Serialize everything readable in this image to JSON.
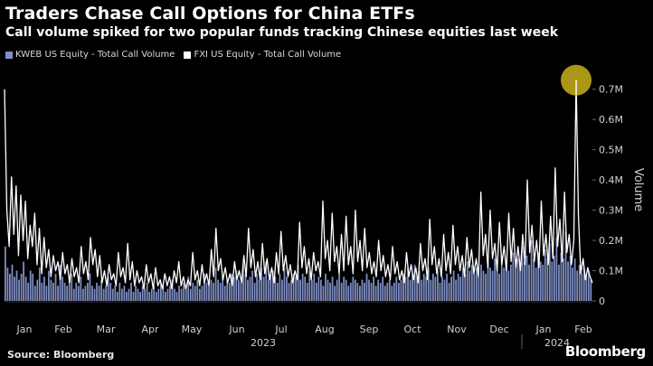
{
  "header": {
    "title": "Traders Chase Call Options for China ETFs",
    "subtitle": "Call volume spiked for two popular funds tracking Chinese equities last week"
  },
  "footer": {
    "source": "Source: Bloomberg",
    "brand": "Bloomberg"
  },
  "colors": {
    "kweb": "#7f8fc4",
    "fxi": "#ffffff",
    "highlight": "#c9b21a"
  },
  "chart_data": {
    "type": "bar",
    "title": "Traders Chase Call Options for China ETFs",
    "ylabel": "Volume",
    "ylim": [
      0,
      0.75
    ],
    "yticks": [
      {
        "v": 0,
        "label": "0"
      },
      {
        "v": 0.1,
        "label": "0.1M"
      },
      {
        "v": 0.2,
        "label": "0.2M"
      },
      {
        "v": 0.3,
        "label": "0.3M"
      },
      {
        "v": 0.4,
        "label": "0.4M"
      },
      {
        "v": 0.5,
        "label": "0.5M"
      },
      {
        "v": 0.6,
        "label": "0.6M"
      },
      {
        "v": 0.7,
        "label": "0.7M"
      }
    ],
    "xticks": [
      "Jan",
      "Feb",
      "Mar",
      "Apr",
      "May",
      "Jun",
      "Jul",
      "Aug",
      "Sep",
      "Oct",
      "Nov",
      "Dec",
      "Jan",
      "Feb"
    ],
    "year_labels": [
      "2023",
      "2024"
    ],
    "series": [
      {
        "name": "KWEB US Equity - Total Call Volume",
        "type": "bar",
        "values": [
          0.18,
          0.11,
          0.09,
          0.12,
          0.08,
          0.1,
          0.07,
          0.09,
          0.13,
          0.08,
          0.06,
          0.1,
          0.09,
          0.05,
          0.07,
          0.11,
          0.06,
          0.08,
          0.05,
          0.1,
          0.07,
          0.06,
          0.09,
          0.05,
          0.12,
          0.08,
          0.06,
          0.05,
          0.07,
          0.09,
          0.04,
          0.06,
          0.05,
          0.08,
          0.04,
          0.05,
          0.06,
          0.09,
          0.05,
          0.04,
          0.06,
          0.05,
          0.07,
          0.04,
          0.05,
          0.08,
          0.06,
          0.04,
          0.05,
          0.03,
          0.06,
          0.04,
          0.05,
          0.03,
          0.04,
          0.06,
          0.03,
          0.05,
          0.04,
          0.03,
          0.05,
          0.04,
          0.06,
          0.03,
          0.04,
          0.05,
          0.03,
          0.04,
          0.06,
          0.05,
          0.03,
          0.04,
          0.05,
          0.07,
          0.04,
          0.03,
          0.05,
          0.04,
          0.06,
          0.05,
          0.08,
          0.04,
          0.06,
          0.05,
          0.07,
          0.04,
          0.05,
          0.09,
          0.06,
          0.05,
          0.07,
          0.06,
          0.11,
          0.07,
          0.06,
          0.08,
          0.05,
          0.07,
          0.06,
          0.09,
          0.08,
          0.1,
          0.07,
          0.06,
          0.12,
          0.09,
          0.07,
          0.08,
          0.1,
          0.06,
          0.09,
          0.07,
          0.11,
          0.08,
          0.13,
          0.07,
          0.09,
          0.1,
          0.08,
          0.06,
          0.09,
          0.07,
          0.11,
          0.08,
          0.06,
          0.07,
          0.09,
          0.08,
          0.12,
          0.07,
          0.09,
          0.08,
          0.06,
          0.1,
          0.07,
          0.09,
          0.06,
          0.08,
          0.07,
          0.05,
          0.09,
          0.07,
          0.06,
          0.08,
          0.05,
          0.07,
          0.09,
          0.06,
          0.08,
          0.07,
          0.05,
          0.06,
          0.08,
          0.07,
          0.06,
          0.05,
          0.07,
          0.06,
          0.09,
          0.07,
          0.06,
          0.08,
          0.05,
          0.07,
          0.06,
          0.08,
          0.05,
          0.06,
          0.07,
          0.05,
          0.06,
          0.08,
          0.06,
          0.07,
          0.09,
          0.08,
          0.11,
          0.07,
          0.09,
          0.12,
          0.08,
          0.1,
          0.07,
          0.09,
          0.08,
          0.11,
          0.07,
          0.09,
          0.08,
          0.1,
          0.06,
          0.08,
          0.07,
          0.09,
          0.06,
          0.08,
          0.1,
          0.07,
          0.09,
          0.08,
          0.11,
          0.09,
          0.13,
          0.1,
          0.12,
          0.09,
          0.11,
          0.08,
          0.12,
          0.1,
          0.09,
          0.13,
          0.11,
          0.1,
          0.14,
          0.12,
          0.09,
          0.15,
          0.11,
          0.13,
          0.1,
          0.12,
          0.16,
          0.11,
          0.14,
          0.12,
          0.18,
          0.13,
          0.15,
          0.12,
          0.2,
          0.14,
          0.11,
          0.16,
          0.13,
          0.12,
          0.17,
          0.14,
          0.19,
          0.13,
          0.15,
          0.21,
          0.12,
          0.16,
          0.14,
          0.23,
          0.13,
          0.15,
          0.11,
          0.14,
          0.1,
          0.12,
          0.09,
          0.11,
          0.08,
          0.1,
          0.07
        ]
      },
      {
        "name": "FXI US Equity - Total Call Volume",
        "type": "line",
        "values": [
          0.7,
          0.3,
          0.18,
          0.41,
          0.22,
          0.38,
          0.15,
          0.35,
          0.2,
          0.33,
          0.14,
          0.25,
          0.18,
          0.29,
          0.12,
          0.24,
          0.09,
          0.21,
          0.11,
          0.17,
          0.08,
          0.15,
          0.1,
          0.13,
          0.07,
          0.16,
          0.09,
          0.12,
          0.06,
          0.14,
          0.08,
          0.11,
          0.06,
          0.18,
          0.09,
          0.13,
          0.07,
          0.21,
          0.12,
          0.17,
          0.08,
          0.15,
          0.06,
          0.1,
          0.05,
          0.12,
          0.07,
          0.09,
          0.05,
          0.16,
          0.08,
          0.11,
          0.06,
          0.19,
          0.07,
          0.13,
          0.05,
          0.1,
          0.06,
          0.08,
          0.04,
          0.12,
          0.06,
          0.09,
          0.04,
          0.11,
          0.05,
          0.07,
          0.04,
          0.09,
          0.05,
          0.08,
          0.04,
          0.1,
          0.06,
          0.13,
          0.05,
          0.08,
          0.04,
          0.07,
          0.05,
          0.16,
          0.07,
          0.1,
          0.05,
          0.12,
          0.06,
          0.09,
          0.05,
          0.17,
          0.08,
          0.24,
          0.1,
          0.14,
          0.07,
          0.11,
          0.06,
          0.09,
          0.05,
          0.13,
          0.07,
          0.1,
          0.06,
          0.15,
          0.08,
          0.24,
          0.11,
          0.17,
          0.08,
          0.13,
          0.07,
          0.19,
          0.09,
          0.14,
          0.07,
          0.11,
          0.06,
          0.16,
          0.09,
          0.23,
          0.1,
          0.15,
          0.08,
          0.12,
          0.06,
          0.1,
          0.07,
          0.26,
          0.11,
          0.18,
          0.09,
          0.14,
          0.07,
          0.16,
          0.1,
          0.13,
          0.08,
          0.33,
          0.14,
          0.2,
          0.1,
          0.29,
          0.13,
          0.18,
          0.09,
          0.22,
          0.1,
          0.28,
          0.12,
          0.18,
          0.09,
          0.3,
          0.13,
          0.2,
          0.1,
          0.24,
          0.11,
          0.16,
          0.09,
          0.13,
          0.08,
          0.2,
          0.1,
          0.15,
          0.08,
          0.12,
          0.07,
          0.18,
          0.09,
          0.13,
          0.07,
          0.1,
          0.06,
          0.16,
          0.08,
          0.12,
          0.07,
          0.11,
          0.06,
          0.19,
          0.1,
          0.14,
          0.07,
          0.27,
          0.12,
          0.18,
          0.09,
          0.14,
          0.08,
          0.22,
          0.1,
          0.16,
          0.09,
          0.25,
          0.12,
          0.18,
          0.1,
          0.15,
          0.08,
          0.21,
          0.11,
          0.17,
          0.09,
          0.14,
          0.08,
          0.36,
          0.15,
          0.22,
          0.11,
          0.3,
          0.14,
          0.19,
          0.1,
          0.26,
          0.12,
          0.18,
          0.1,
          0.29,
          0.13,
          0.24,
          0.11,
          0.18,
          0.1,
          0.22,
          0.12,
          0.4,
          0.16,
          0.25,
          0.13,
          0.2,
          0.11,
          0.33,
          0.15,
          0.22,
          0.12,
          0.28,
          0.14,
          0.44,
          0.18,
          0.27,
          0.13,
          0.36,
          0.16,
          0.22,
          0.12,
          0.2,
          0.73,
          0.28,
          0.09,
          0.14,
          0.07,
          0.11,
          0.08,
          0.06
        ]
      }
    ],
    "highlight_point": {
      "series": "FXI US Equity - Total Call Volume",
      "value": 0.73
    }
  }
}
